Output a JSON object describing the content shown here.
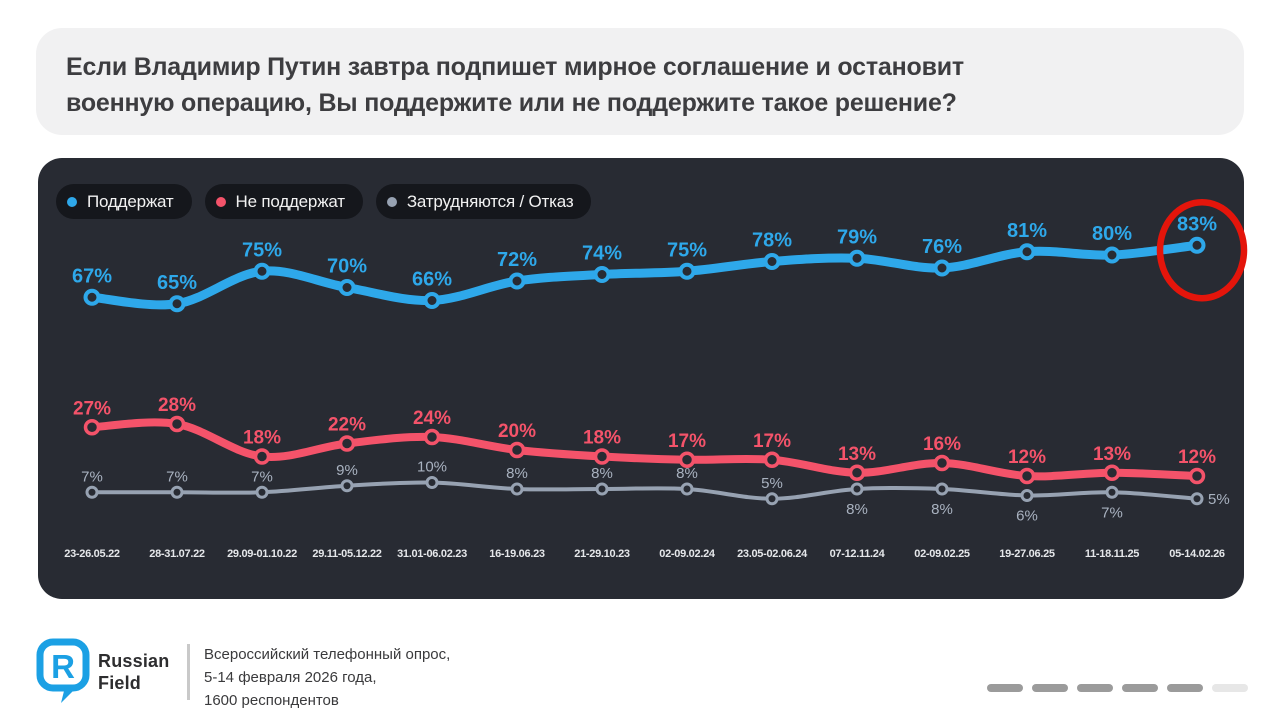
{
  "question": {
    "lines": [
      "Если Владимир Путин завтра подпишет мирное соглашение и остановит",
      "военную операцию, Вы поддержите или не поддержите такое решение?"
    ]
  },
  "chart_data": {
    "type": "line",
    "title": "Если Владимир Путин завтра подпишет мирное соглашение и остановит военную операцию, Вы поддержите или не поддержите такое решение?",
    "background": "#282b33",
    "grid": false,
    "legend_position": "top-left",
    "value_suffix": "%",
    "ylim": [
      0,
      100
    ],
    "categories": [
      "23-26.05.22",
      "28-31.07.22",
      "29.09-01.10.22",
      "29.11-05.12.22",
      "31.01-06.02.23",
      "16-19.06.23",
      "21-29.10.23",
      "02-09.02.24",
      "23.05-02.06.24",
      "07-12.11.24",
      "02-09.02.25",
      "19-27.06.25",
      "11-18.11.25",
      "05-14.02.26"
    ],
    "series": [
      {
        "name": "Поддержат",
        "color": "#2ea8ea",
        "values": [
          67,
          65,
          75,
          70,
          66,
          72,
          74,
          75,
          78,
          79,
          76,
          81,
          80,
          83
        ]
      },
      {
        "name": "Не поддержат",
        "color": "#f4536a",
        "values": [
          27,
          28,
          18,
          22,
          24,
          20,
          18,
          17,
          17,
          13,
          16,
          12,
          13,
          12
        ]
      },
      {
        "name": "Затрудняются / Отказ",
        "color": "#97a2b2",
        "label_color": "#a9b2c0",
        "values": [
          7,
          7,
          7,
          9,
          10,
          8,
          8,
          8,
          5,
          8,
          8,
          6,
          7,
          5
        ],
        "label_pos": [
          "above",
          "above",
          "above",
          "above",
          "above",
          "above",
          "above",
          "above",
          "above",
          "below",
          "below",
          "below",
          "below",
          "right"
        ]
      }
    ],
    "annotation": {
      "shape": "ellipse",
      "series_index": 0,
      "point_index": 13,
      "color": "#e4150b",
      "meaning": "highlights latest value 83%"
    }
  },
  "footer": {
    "brand": {
      "line1": "Russian",
      "line2": "Field",
      "logo_letter": "R",
      "logo_color": "#1ba0e4"
    },
    "source_lines": [
      "Всероссийский телефонный опрос,",
      "5-14 февраля 2026 года,",
      "1600 респондентов"
    ]
  },
  "pagination": {
    "count": 6,
    "light_index": 5,
    "dash_color": "#9b9b9b",
    "light_color": "#e7e7e7"
  }
}
